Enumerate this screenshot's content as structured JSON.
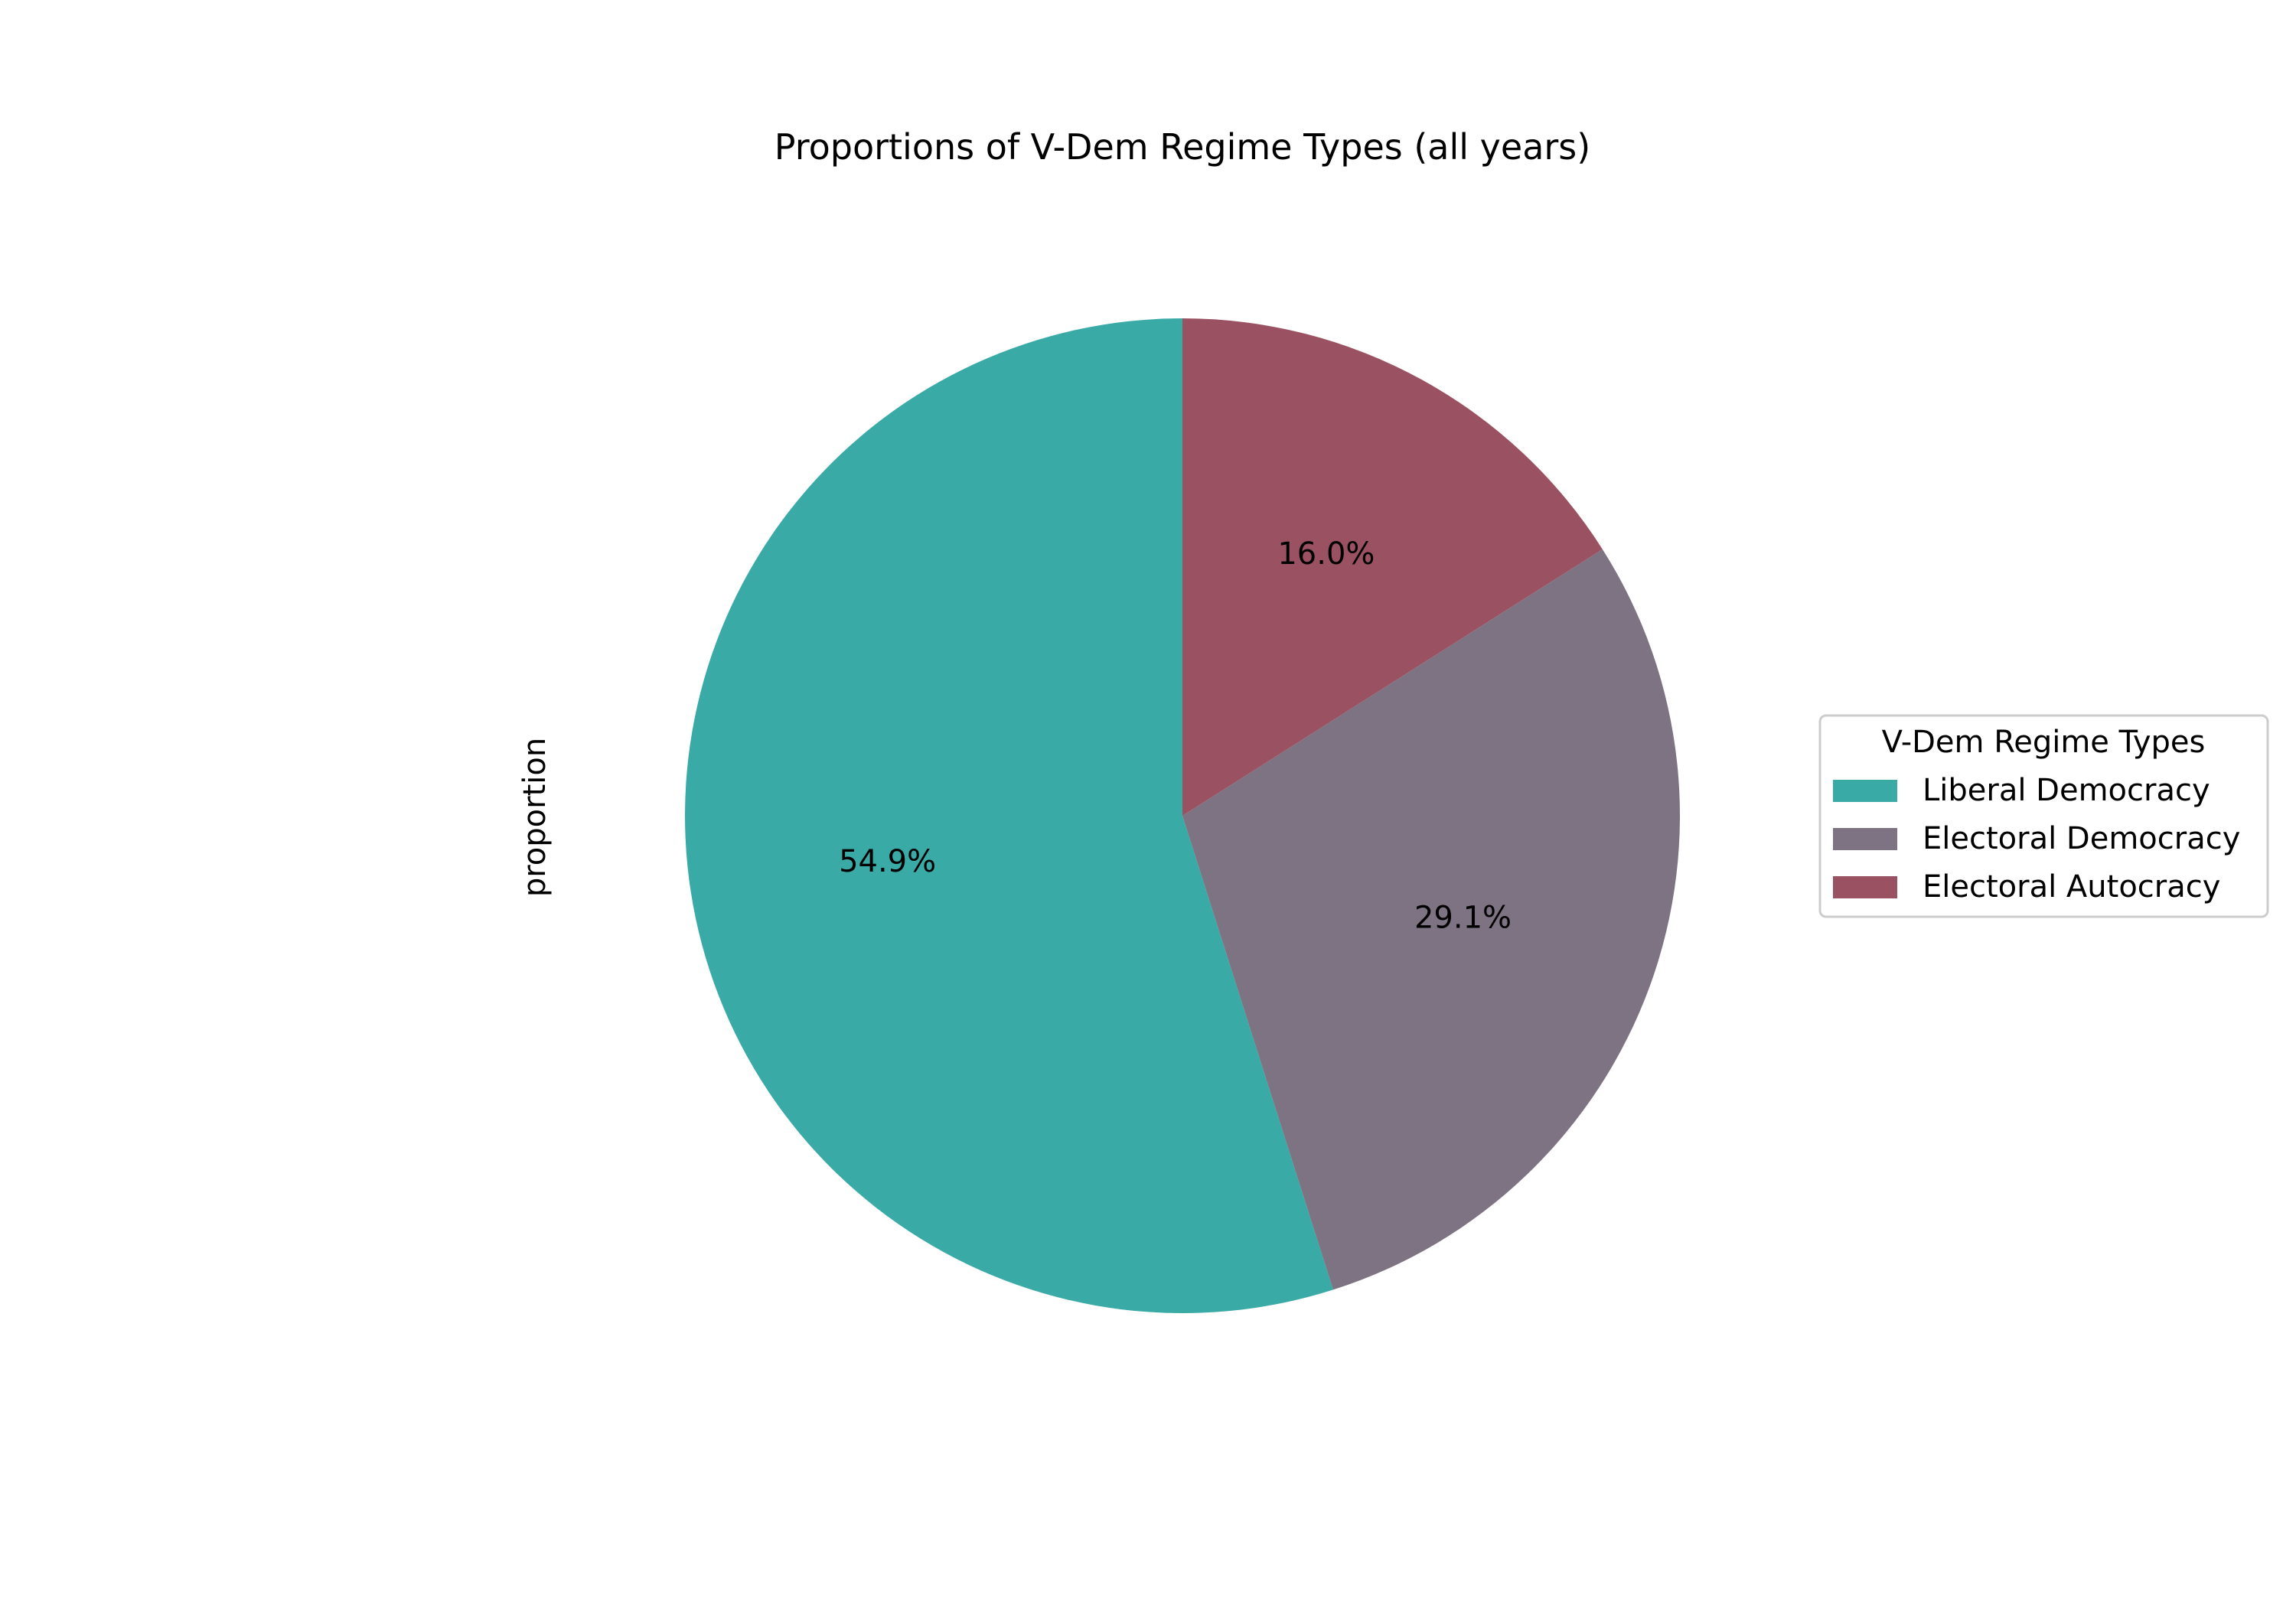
{
  "chart_data": {
    "type": "pie",
    "title": "Proportions of V-Dem Regime Types (all years)",
    "ylabel": "proportion",
    "start_angle_deg": 90,
    "direction": "counterclockwise",
    "slices": [
      {
        "name": "Liberal Democracy",
        "value": 54.9,
        "label": "54.9%",
        "color": "#3aaaa7"
      },
      {
        "name": "Electoral Democracy",
        "value": 29.1,
        "label": "29.1%",
        "color": "#7e7383"
      },
      {
        "name": "Electoral Autocracy",
        "value": 16.0,
        "label": "16.0%",
        "color": "#9a5262"
      }
    ],
    "legend": {
      "title": "V-Dem Regime Types",
      "placement": "center-right"
    }
  }
}
